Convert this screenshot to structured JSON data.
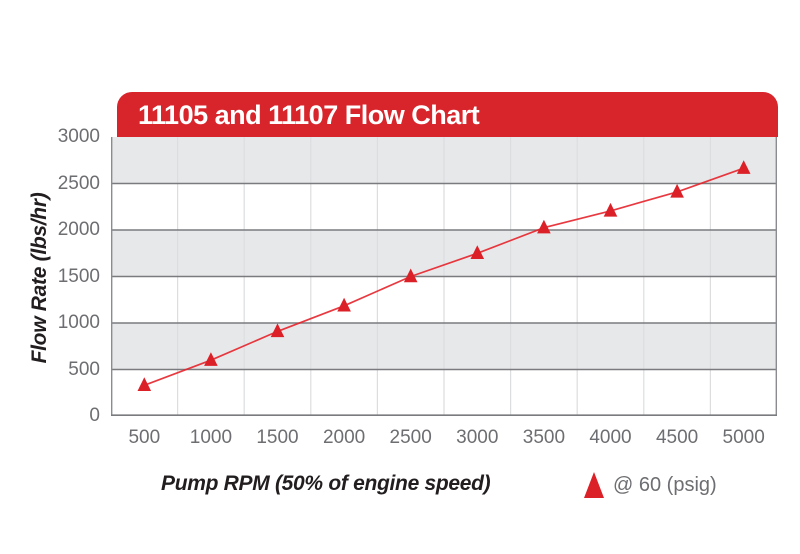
{
  "header": {
    "title": "11105 and 11107 Flow Chart"
  },
  "colors": {
    "accent_red": "#d8242b",
    "line_red": "#e5242b",
    "marker_red": "#db2027",
    "band_gray": "#e7e8ea",
    "grid_dark": "#7a7b7e",
    "grid_light": "#dcdddf",
    "border_gray": "#8a8c8f",
    "tick_text_gray": "#6d6e71",
    "axis_title_black": "#221e1f",
    "title_white": "#ffffff"
  },
  "chart_data": {
    "type": "line",
    "title": "11105 and 11107 Flow Chart",
    "xlabel": "Pump RPM (50% of engine speed)",
    "ylabel": "Flow Rate (lbs/hr)",
    "categories": [
      500,
      1000,
      1500,
      2000,
      2500,
      3000,
      3500,
      4000,
      4500,
      5000
    ],
    "series": [
      {
        "name": "@ 60 (psig)",
        "marker": "triangle-up",
        "values": [
          330,
          600,
          910,
          1185,
          1500,
          1750,
          2025,
          2205,
          2410,
          2665
        ]
      }
    ],
    "ylim": [
      0,
      3000
    ],
    "yticks": [
      3000,
      2500,
      2000,
      1500,
      1000,
      500,
      0
    ],
    "grid": "horizontal dark gridlines every 500; faint vertical lines at category boundaries; alternating gray/white 500-unit bands",
    "legend_position": "bottom-right"
  },
  "legend": {
    "label": "@ 60 (psig)"
  }
}
